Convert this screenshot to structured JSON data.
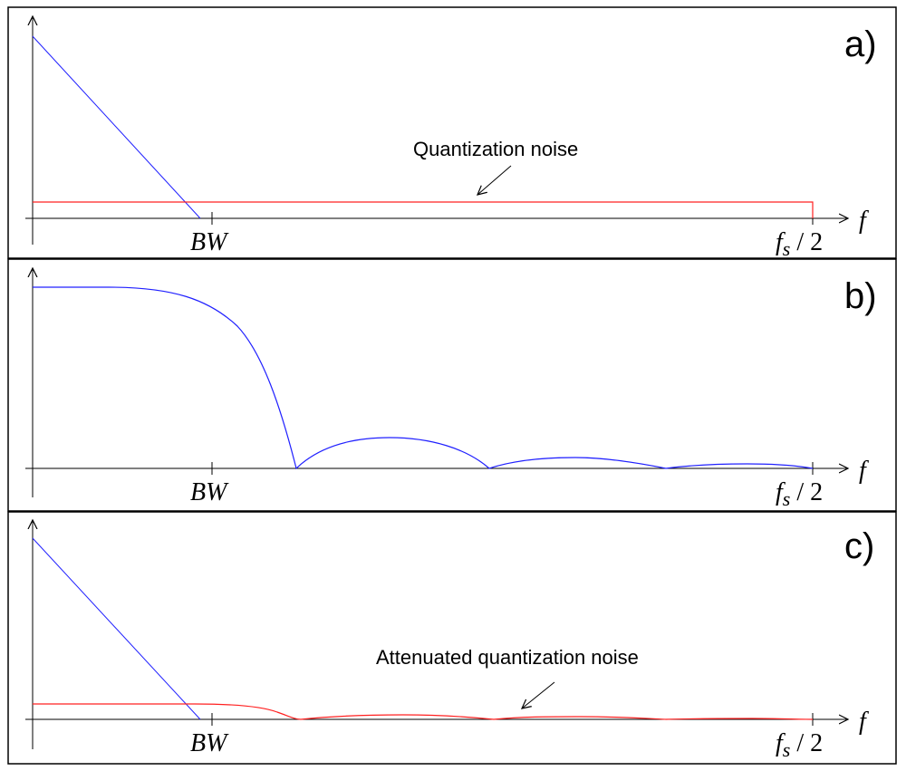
{
  "panels": [
    {
      "label": "a)",
      "annotation": "Quantization noise"
    },
    {
      "label": "b)"
    },
    {
      "label": "c)",
      "annotation": "Attenuated quantization noise"
    }
  ],
  "axis": {
    "x_label": "f",
    "bw_label": "BW",
    "fs_label": "f",
    "fs_subscript": "s",
    "fs_suffix": " / 2"
  },
  "colors": {
    "signal": "#2020ff",
    "noise": "#ff2020",
    "axis": "#000000",
    "border": "#000000"
  }
}
